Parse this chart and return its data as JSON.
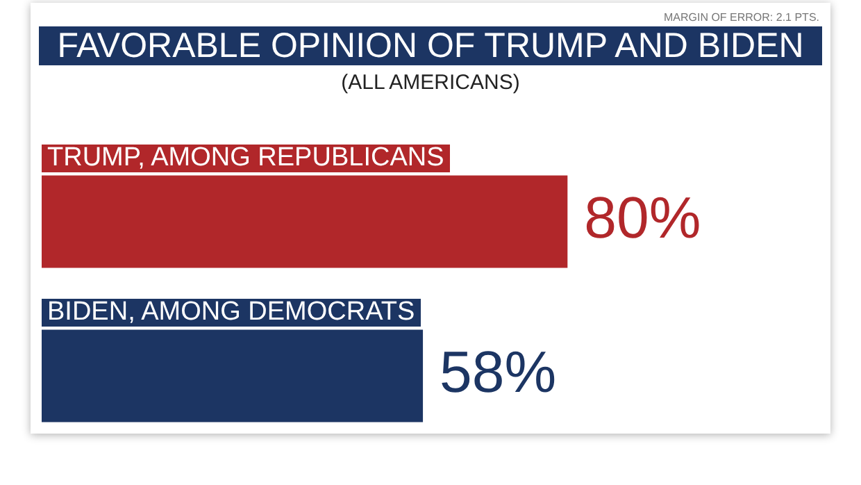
{
  "chart_data": {
    "type": "bar",
    "orientation": "horizontal",
    "title": "FAVORABLE OPINION OF TRUMP AND BIDEN",
    "subtitle": "(ALL AMERICANS)",
    "annotations": [
      "MARGIN OF ERROR: 2.1 PTS."
    ],
    "categories": [
      "TRUMP, AMONG REPUBLICANS",
      "BIDEN, AMONG DEMOCRATS"
    ],
    "values": [
      80,
      58
    ],
    "colors": [
      "#b1272a",
      "#1c3563"
    ],
    "value_labels": [
      "80%",
      "58%"
    ],
    "grid": false,
    "legend": false
  }
}
